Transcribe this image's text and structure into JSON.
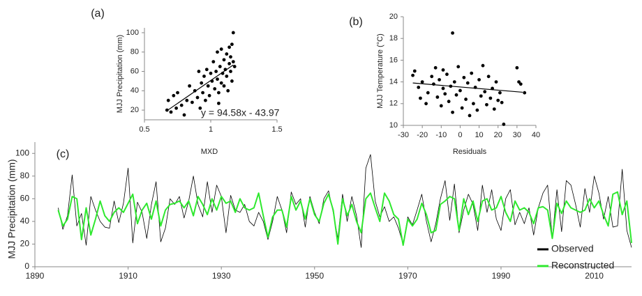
{
  "chart_data": [
    {
      "type": "scatter",
      "panel_label": "(a)",
      "x_label": "MXD",
      "y_label": "MJJ Precipitation (mm)",
      "annotation": "y = 94.58x - 43.97",
      "color": "#000000",
      "xlim": [
        0.5,
        1.5
      ],
      "xticks": [
        0.5,
        1,
        1.5
      ],
      "ylim": [
        10,
        105
      ],
      "yticks": [
        20,
        40,
        60,
        80,
        100
      ],
      "grid": false,
      "x": [
        0.67,
        0.68,
        0.7,
        0.72,
        0.74,
        0.75,
        0.78,
        0.8,
        0.82,
        0.84,
        0.86,
        0.88,
        0.9,
        0.91,
        0.92,
        0.93,
        0.94,
        0.95,
        0.96,
        0.97,
        0.98,
        0.99,
        1.0,
        1.01,
        1.02,
        1.03,
        1.04,
        1.05,
        1.05,
        1.06,
        1.07,
        1.08,
        1.08,
        1.09,
        1.1,
        1.1,
        1.11,
        1.12,
        1.12,
        1.13,
        1.14,
        1.14,
        1.15,
        1.15,
        1.16,
        1.16,
        1.17,
        1.17,
        1.18,
        1.06
      ],
      "values": [
        20,
        30,
        18,
        35,
        22,
        38,
        25,
        15,
        30,
        45,
        28,
        40,
        33,
        60,
        22,
        48,
        38,
        55,
        30,
        62,
        45,
        35,
        58,
        50,
        70,
        42,
        60,
        80,
        52,
        38,
        65,
        48,
        83,
        58,
        72,
        45,
        62,
        78,
        55,
        40,
        68,
        85,
        60,
        75,
        50,
        88,
        100,
        70,
        65,
        27
      ],
      "trendline": {
        "x": [
          0.67,
          1.17
        ],
        "y": [
          19.4,
          66.7
        ]
      }
    },
    {
      "type": "scatter",
      "panel_label": "(b)",
      "x_label": "Residuals",
      "y_label": "MJJ Temperature (°C)",
      "color": "#000000",
      "xlim": [
        -30,
        40
      ],
      "xticks": [
        -30,
        -20,
        -10,
        0,
        10,
        20,
        30,
        40
      ],
      "ylim": [
        10,
        20
      ],
      "yticks": [
        10,
        12,
        14,
        16,
        18,
        20
      ],
      "grid": false,
      "x": [
        -25,
        -24,
        -22,
        -21,
        -20,
        -18,
        -17,
        -15,
        -14,
        -13,
        -12,
        -11,
        -10,
        -9,
        -9,
        -8,
        -7,
        -6,
        -5,
        -4,
        -4,
        -3,
        -2,
        -1,
        0,
        1,
        2,
        3,
        4,
        5,
        6,
        7,
        8,
        9,
        10,
        11,
        12,
        13,
        14,
        15,
        16,
        17,
        18,
        19,
        20,
        21,
        22,
        23,
        30,
        31,
        32,
        34
      ],
      "values": [
        14.6,
        15.0,
        13.5,
        12.5,
        14.0,
        12.0,
        13.0,
        14.5,
        13.8,
        15.3,
        12.6,
        14.2,
        11.8,
        13.4,
        15.1,
        12.9,
        14.7,
        12.2,
        13.6,
        18.5,
        11.2,
        14.0,
        12.8,
        15.4,
        13.2,
        11.6,
        14.4,
        12.4,
        13.9,
        10.9,
        14.8,
        12.0,
        13.5,
        11.4,
        14.2,
        12.7,
        15.5,
        13.1,
        11.9,
        14.5,
        12.5,
        13.4,
        11.5,
        14.0,
        12.3,
        13.0,
        12.1,
        10.1,
        15.3,
        14.0,
        13.8,
        13.0
      ],
      "trendline": {
        "x": [
          -25,
          33
        ],
        "y": [
          13.9,
          13.05
        ]
      }
    },
    {
      "type": "line",
      "panel_label": "(c)",
      "y_label": "MJJ Precipitation (mm)",
      "xlim": [
        1890,
        2018
      ],
      "xticks": [
        1890,
        1910,
        1930,
        1950,
        1970,
        1990,
        2010
      ],
      "ylim": [
        0,
        110
      ],
      "yticks": [
        0,
        20,
        40,
        60,
        80,
        100
      ],
      "grid": false,
      "legend": "bottom-right",
      "x": [
        1895,
        1896,
        1897,
        1898,
        1899,
        1900,
        1901,
        1902,
        1903,
        1904,
        1905,
        1906,
        1907,
        1908,
        1909,
        1910,
        1911,
        1912,
        1913,
        1914,
        1915,
        1916,
        1917,
        1918,
        1919,
        1920,
        1921,
        1922,
        1923,
        1924,
        1925,
        1926,
        1927,
        1928,
        1929,
        1930,
        1931,
        1932,
        1933,
        1934,
        1935,
        1936,
        1937,
        1938,
        1939,
        1940,
        1941,
        1942,
        1943,
        1944,
        1945,
        1946,
        1947,
        1948,
        1949,
        1950,
        1951,
        1952,
        1953,
        1954,
        1955,
        1956,
        1957,
        1958,
        1959,
        1960,
        1961,
        1962,
        1963,
        1964,
        1965,
        1966,
        1967,
        1968,
        1969,
        1970,
        1971,
        1972,
        1973,
        1974,
        1975,
        1976,
        1977,
        1978,
        1979,
        1980,
        1981,
        1982,
        1983,
        1984,
        1985,
        1986,
        1987,
        1988,
        1989,
        1990,
        1991,
        1992,
        1993,
        1994,
        1995,
        1996,
        1997,
        1998,
        1999,
        2000,
        2001,
        2002,
        2003,
        2004,
        2005,
        2006,
        2007,
        2008,
        2009,
        2010,
        2011,
        2012,
        2013,
        2014,
        2015,
        2016,
        2017,
        2018
      ],
      "series": [
        {
          "name": "Observed",
          "color": "#000000",
          "width": 0.8,
          "values": [
            52,
            33,
            45,
            81,
            36,
            47,
            19,
            62,
            50,
            40,
            35,
            34,
            58,
            39,
            56,
            87,
            21,
            57,
            48,
            25,
            55,
            75,
            22,
            34,
            60,
            55,
            62,
            43,
            58,
            80,
            55,
            44,
            75,
            48,
            72,
            62,
            30,
            63,
            50,
            48,
            55,
            40,
            36,
            48,
            40,
            24,
            40,
            62,
            50,
            30,
            66,
            55,
            60,
            35,
            62,
            48,
            38,
            60,
            67,
            48,
            25,
            64,
            40,
            62,
            45,
            17,
            87,
            99,
            58,
            44,
            53,
            40,
            44,
            34,
            20,
            44,
            37,
            50,
            64,
            40,
            22,
            38,
            60,
            76,
            41,
            73,
            30,
            50,
            64,
            55,
            32,
            72,
            48,
            68,
            42,
            32,
            60,
            68,
            37,
            48,
            38,
            52,
            28,
            52,
            65,
            72,
            25,
            68,
            31,
            76,
            72,
            55,
            35,
            69,
            48,
            80,
            65,
            42,
            62,
            35,
            36,
            86,
            32,
            17
          ]
        },
        {
          "name": "Reconstructed",
          "color": "#2ee82e",
          "width": 2,
          "values": [
            50,
            36,
            42,
            62,
            60,
            24,
            52,
            28,
            42,
            58,
            45,
            40,
            48,
            52,
            48,
            56,
            64,
            38,
            50,
            56,
            42,
            58,
            36,
            50,
            55,
            56,
            58,
            52,
            58,
            45,
            62,
            55,
            46,
            60,
            50,
            62,
            56,
            58,
            48,
            60,
            52,
            50,
            52,
            65,
            45,
            26,
            44,
            50,
            50,
            35,
            62,
            50,
            58,
            42,
            60,
            46,
            40,
            56,
            64,
            50,
            20,
            60,
            45,
            55,
            40,
            30,
            60,
            65,
            52,
            40,
            65,
            58,
            46,
            42,
            19,
            42,
            36,
            42,
            56,
            46,
            30,
            32,
            55,
            58,
            62,
            60,
            32,
            60,
            46,
            58,
            40,
            58,
            60,
            50,
            52,
            62,
            48,
            40,
            58,
            50,
            52,
            48,
            38,
            52,
            53,
            50,
            25,
            56,
            47,
            58,
            52,
            50,
            48,
            50,
            60,
            52,
            58,
            46,
            36,
            64,
            66,
            46,
            58,
            21
          ]
        }
      ]
    }
  ]
}
